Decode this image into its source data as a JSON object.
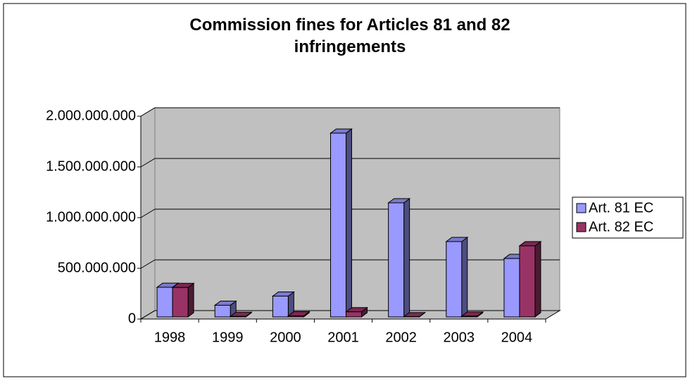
{
  "chart_data": {
    "type": "bar3d",
    "title": "Commission fines for Articles 81 and 82 infringements",
    "categories": [
      "1998",
      "1999",
      "2000",
      "2001",
      "2002",
      "2003",
      "2004"
    ],
    "series": [
      {
        "name": "Art. 81 EC",
        "color": "#9999ff",
        "values": [
          292000000,
          115000000,
          205000000,
          1812000000,
          1125000000,
          743000000,
          576000000
        ]
      },
      {
        "name": "Art. 82 EC",
        "color": "#993366",
        "values": [
          290000000,
          5000000,
          10000000,
          50000000,
          2000000,
          8000000,
          701000000
        ]
      }
    ],
    "ylim": [
      0,
      2000000000
    ],
    "yticks": [
      0,
      {
        "value": 500000000,
        "label": "500.000.000"
      },
      {
        "value": 1000000000,
        "label": "1.000.000.000"
      },
      {
        "value": 1500000000,
        "label": "1.500.000.000"
      },
      {
        "value": 2000000000,
        "label": "2.000.000.000"
      }
    ],
    "grid": true,
    "legend": "right"
  }
}
